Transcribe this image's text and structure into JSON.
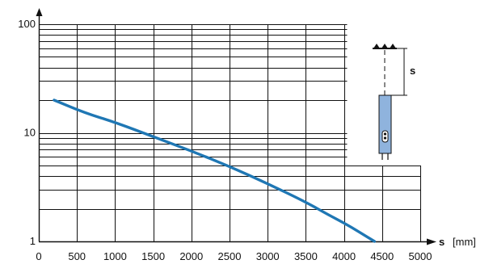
{
  "chart_data": {
    "type": "line",
    "title": "",
    "x_axis": {
      "label_symbol": "s",
      "label_unit": "[mm]",
      "ticks": [
        0,
        500,
        1000,
        1500,
        2000,
        2500,
        3000,
        3500,
        4000,
        4500,
        5000
      ],
      "tick_labels": [
        "0",
        "500",
        "1000",
        "1500",
        "2000",
        "2500",
        "3000",
        "3500",
        "4000",
        "4500",
        "5000"
      ],
      "range": [
        0,
        5000
      ]
    },
    "y_axis": {
      "scale": "log",
      "range": [
        1,
        100
      ],
      "tick_labels": [
        {
          "value": 1,
          "label": "1"
        },
        {
          "value": 10,
          "label": "10"
        },
        {
          "value": 100,
          "label": "100"
        }
      ]
    },
    "grid": true,
    "series": [
      {
        "color": "#1f77b4",
        "x": [
          200,
          600,
          1000,
          1500,
          2000,
          2500,
          3000,
          3500,
          3800,
          4000,
          4200,
          4400
        ],
        "y": [
          20,
          15.3,
          12.5,
          9.2,
          6.8,
          4.9,
          3.4,
          2.3,
          1.75,
          1.48,
          1.22,
          1.0
        ]
      }
    ],
    "inset_labels": {
      "distance": "s"
    }
  }
}
